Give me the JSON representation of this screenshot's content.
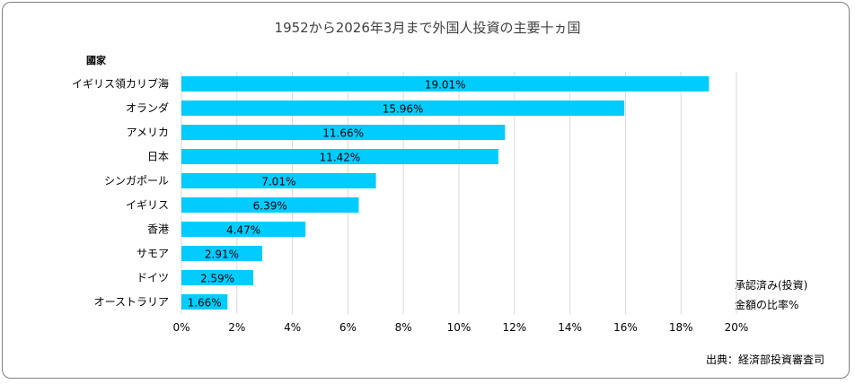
{
  "chart_data": {
    "type": "bar",
    "orientation": "horizontal",
    "title": "1952から2026年3月まで外国人投資の主要十ヵ国",
    "category_axis_label": "國家",
    "value_axis_label_line1": "承認済み(投資)",
    "value_axis_label_line2": "金額の比率%",
    "source": "出典：経済部投資審査司",
    "categories": [
      "イギリス領カリブ海",
      "オランダ",
      "アメリカ",
      "日本",
      "シンガポール",
      "イギリス",
      "香港",
      "サモア",
      "ドイツ",
      "オーストラリア"
    ],
    "values": [
      19.01,
      15.96,
      11.66,
      11.42,
      7.01,
      6.39,
      4.47,
      2.91,
      2.59,
      1.66
    ],
    "data_labels": [
      "19.01%",
      "15.96%",
      "11.66%",
      "11.42%",
      "7.01%",
      "6.39%",
      "4.47%",
      "2.91%",
      "2.59%",
      "1.66%"
    ],
    "xlim": [
      0,
      20
    ],
    "x_ticks": [
      0,
      2,
      4,
      6,
      8,
      10,
      12,
      14,
      16,
      18,
      20
    ],
    "x_tick_labels": [
      "0%",
      "2%",
      "4%",
      "6%",
      "8%",
      "10%",
      "12%",
      "14%",
      "16%",
      "18%",
      "20%"
    ],
    "grid": true,
    "bar_color": "#00ccff",
    "grid_color": "#d9d9d9"
  }
}
